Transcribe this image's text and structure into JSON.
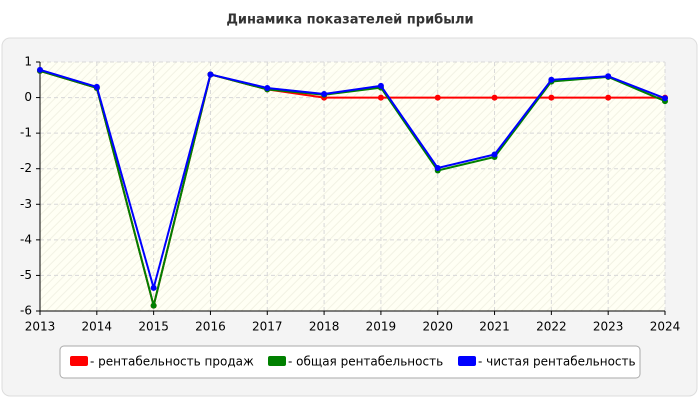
{
  "chart_data": {
    "type": "line",
    "title": "Динамика показателей прибыли",
    "categories": [
      "2013",
      "2014",
      "2015",
      "2016",
      "2017",
      "2018",
      "2019",
      "2020",
      "2021",
      "2022",
      "2023",
      "2024"
    ],
    "series": [
      {
        "name": "- рентабельность продаж",
        "color": "#ff0000",
        "values": [
          0.75,
          0.27,
          -5.85,
          0.65,
          0.23,
          0,
          0,
          0,
          0,
          0,
          0,
          0
        ]
      },
      {
        "name": "- общая рентабельность",
        "color": "#008000",
        "values": [
          0.75,
          0.27,
          -5.85,
          0.65,
          0.23,
          0.08,
          0.28,
          -2.05,
          -1.67,
          0.45,
          0.58,
          -0.1
        ]
      },
      {
        "name": "- чистая рентабельность",
        "color": "#0000ff",
        "values": [
          0.78,
          0.3,
          -5.35,
          0.65,
          0.27,
          0.1,
          0.33,
          -1.98,
          -1.6,
          0.5,
          0.6,
          -0.02
        ]
      }
    ],
    "ylim": [
      -6,
      1
    ],
    "yticks": [
      -6,
      -5,
      -4,
      -3,
      -2,
      -1,
      0,
      1
    ],
    "grid": true
  }
}
